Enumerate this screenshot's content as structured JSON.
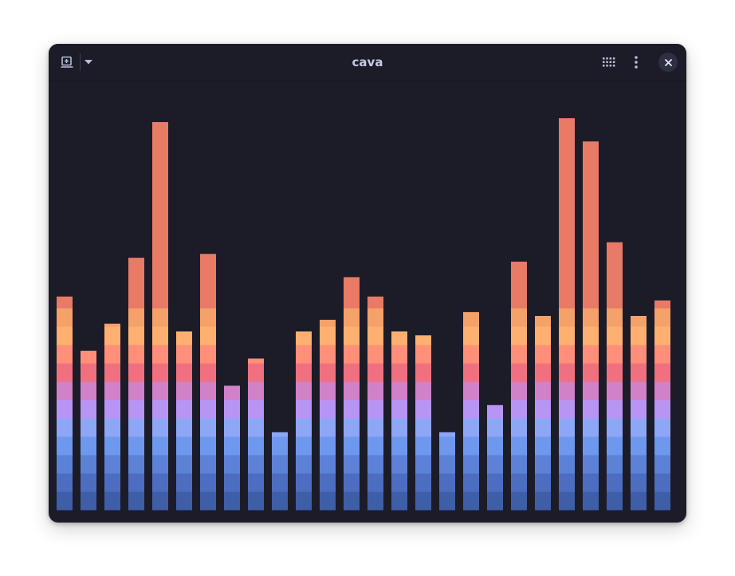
{
  "window": {
    "title": "cava"
  },
  "header": {
    "left_buttons": [
      {
        "icon": "new-tab-icon"
      },
      {
        "icon": "chevron-down-icon"
      }
    ],
    "right_buttons": [
      {
        "icon": "grid-icon"
      },
      {
        "icon": "vertical-dots-icon"
      },
      {
        "icon": "close-icon"
      }
    ]
  },
  "visualizer": {
    "bar_levels": [
      0.55,
      0.41,
      0.48,
      0.65,
      1.0,
      0.46,
      0.66,
      0.32,
      0.39,
      0.2,
      0.46,
      0.49,
      0.6,
      0.55,
      0.46,
      0.45,
      0.2,
      0.51,
      0.27,
      0.64,
      0.5,
      1.01,
      0.95,
      0.69,
      0.5,
      0.54
    ],
    "gradient_stops": [
      "#3f5ea8",
      "#4d6ec0",
      "#5b82d6",
      "#6e98ee",
      "#8ea6f6",
      "#b894f4",
      "#d081c8",
      "#f07080",
      "#ff8f78",
      "#ffb070",
      "#f4a16a",
      "#e87a66"
    ],
    "colors": {
      "background": "#1c1c28",
      "icon": "#b8bdd8"
    }
  }
}
